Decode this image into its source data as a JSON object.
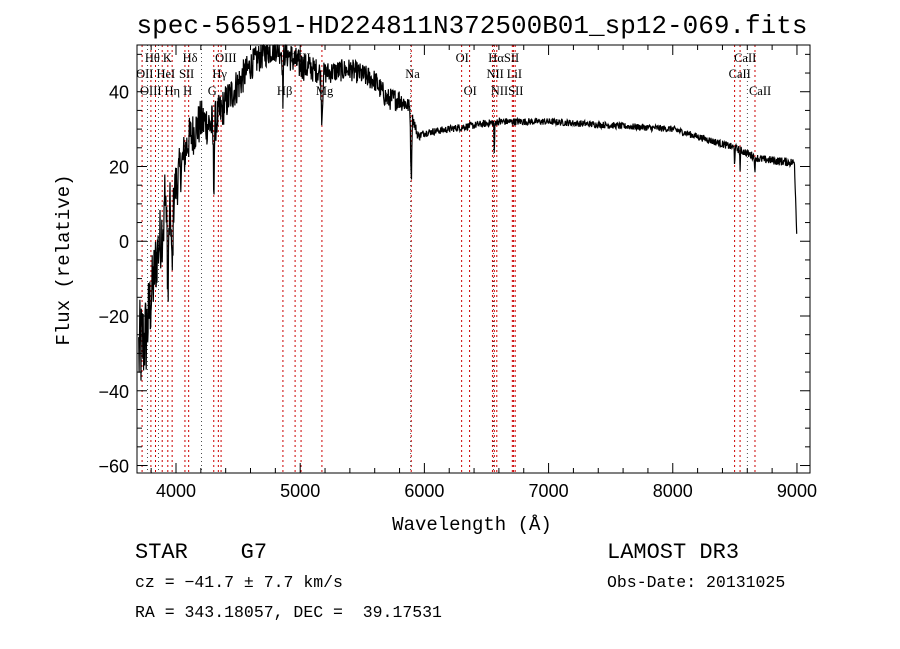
{
  "chart_data": {
    "type": "line",
    "title": "spec-56591-HD224811N372500B01_sp12-069.fits",
    "xlabel": "Wavelength (Å)",
    "ylabel": "Flux (relative)",
    "xlim": [
      3686,
      9105
    ],
    "ylim": [
      -62,
      52.5
    ],
    "xticks": [
      4000,
      5000,
      6000,
      7000,
      8000,
      9000
    ],
    "yticks": [
      -60,
      -40,
      -20,
      0,
      20,
      40
    ],
    "grid": false,
    "series": [
      {
        "name": "spectrum",
        "continuum_wavelength": [
          3700,
          3760,
          3800,
          3850,
          3900,
          3950,
          4000,
          4100,
          4200,
          4300,
          4400,
          4500,
          4600,
          4700,
          4800,
          4900,
          5000,
          5200,
          5400,
          5600,
          5700,
          5800,
          5880,
          5950,
          6000,
          6200,
          6400,
          6600,
          6700,
          7000,
          7500,
          8000,
          8500,
          8700,
          8980,
          9000
        ],
        "continuum_flux": [
          -30,
          -25,
          -15,
          -3,
          5,
          8,
          15,
          27,
          32,
          31,
          37,
          42,
          47,
          50,
          52,
          50,
          47,
          45,
          46,
          43,
          38,
          38,
          36,
          28,
          29,
          30,
          31,
          32,
          32,
          32,
          31,
          30,
          25,
          22,
          21,
          0
        ],
        "noise": [
          14,
          12,
          10,
          9,
          9,
          8,
          7,
          6,
          6,
          6,
          5,
          5,
          4,
          4,
          4,
          4,
          4,
          3,
          3,
          3,
          3,
          3,
          2,
          1.2,
          1,
          1,
          1,
          1,
          1,
          0.9,
          0.9,
          0.9,
          1,
          1.1,
          1.2,
          0
        ]
      }
    ],
    "lines": [
      {
        "label": "Hθ",
        "wavelength": 3798,
        "row": 1
      },
      {
        "label": "K",
        "wavelength": 3934,
        "row": 1
      },
      {
        "label": "Hδ",
        "wavelength": 4102,
        "row": 1
      },
      {
        "label": "OIII",
        "wavelength": 4363,
        "row": 1
      },
      {
        "label": "OIII",
        "wavelength": 4959,
        "row": 1
      },
      {
        "label": "OI",
        "wavelength": 6300,
        "row": 1
      },
      {
        "label": "HαSII",
        "wavelength": 6563,
        "row": 1
      },
      {
        "label": "CaII",
        "wavelength": 8542,
        "row": 1
      },
      {
        "label": "OII",
        "wavelength": 3727,
        "row": 2
      },
      {
        "label": "HeI",
        "wavelength": 3889,
        "row": 2
      },
      {
        "label": "SII",
        "wavelength": 4072,
        "row": 2
      },
      {
        "label": "Hγ",
        "wavelength": 4341,
        "row": 2
      },
      {
        "label": "Na",
        "wavelength": 5894,
        "row": 2
      },
      {
        "label": "NII",
        "wavelength": 6548,
        "row": 2
      },
      {
        "label": "LiI",
        "wavelength": 6708,
        "row": 2
      },
      {
        "label": "CaII",
        "wavelength": 8498,
        "row": 2
      },
      {
        "label": "OIII",
        "wavelength": 3727,
        "row": 3
      },
      {
        "label": "Hη",
        "wavelength": 3835,
        "row": 3
      },
      {
        "label": "H",
        "wavelength": 3969,
        "row": 3
      },
      {
        "label": "G",
        "wavelength": 4304,
        "row": 3
      },
      {
        "label": "Hβ",
        "wavelength": 4861,
        "row": 3
      },
      {
        "label": "Mg",
        "wavelength": 5175,
        "row": 3
      },
      {
        "label": "OI",
        "wavelength": 6364,
        "row": 3
      },
      {
        "label": "NIISII",
        "wavelength": 6583,
        "row": 3
      },
      {
        "label": "CaII",
        "wavelength": 8662,
        "row": 3
      }
    ],
    "extra_lines": [
      5007,
      6717,
      6731
    ],
    "line_color": "#cc0000",
    "dotted_color": "#000000"
  },
  "info": {
    "class": "STAR",
    "subclass": "G7",
    "survey": "LAMOST DR3",
    "cz": "cz = −41.7 ± 7.7 km/s",
    "obs_date": "Obs-Date: 20131025",
    "coords": "RA = 343.18057, DEC =  39.17531"
  }
}
